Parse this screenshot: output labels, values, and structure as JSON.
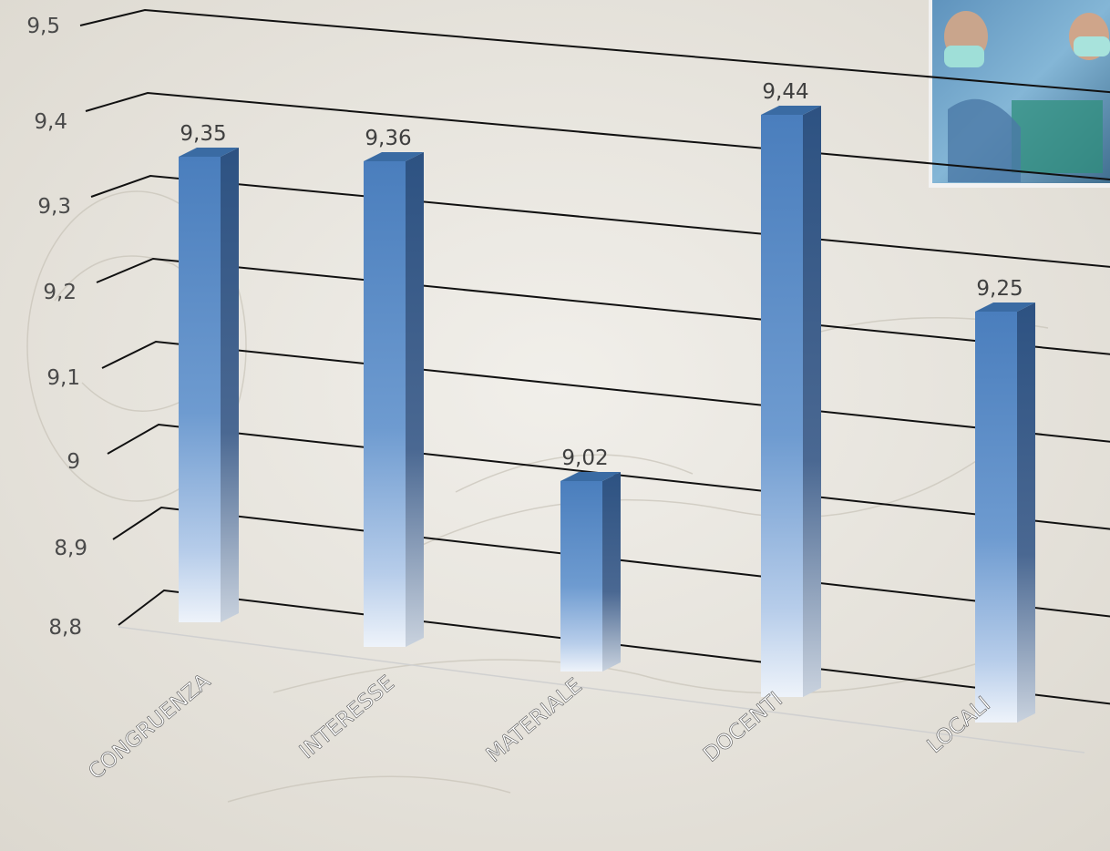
{
  "chart_data": {
    "type": "bar",
    "title": "",
    "xlabel": "",
    "ylabel": "",
    "categories": [
      "CONGRUENZA",
      "INTERESSE",
      "MATERIALE",
      "DOCENTI",
      "LOCALI"
    ],
    "values": [
      9.35,
      9.36,
      9.02,
      9.44,
      9.25
    ],
    "value_labels": [
      "9,35",
      "9,36",
      "9,02",
      "9,44",
      "9,25"
    ],
    "ylim": [
      8.8,
      9.5
    ],
    "yticks": [
      8.8,
      8.9,
      9.0,
      9.1,
      9.2,
      9.3,
      9.4,
      9.5
    ],
    "ytick_labels": [
      "8,8",
      "8,9",
      "9",
      "9,1",
      "9,2",
      "9,3",
      "9,4",
      "9,5"
    ],
    "grid": true,
    "legend": "none",
    "style": "3d-perspective",
    "bar_color": "#4f81bd"
  },
  "decoration": {
    "photo": "surgery-team-photo",
    "background": "sketch-texture"
  }
}
